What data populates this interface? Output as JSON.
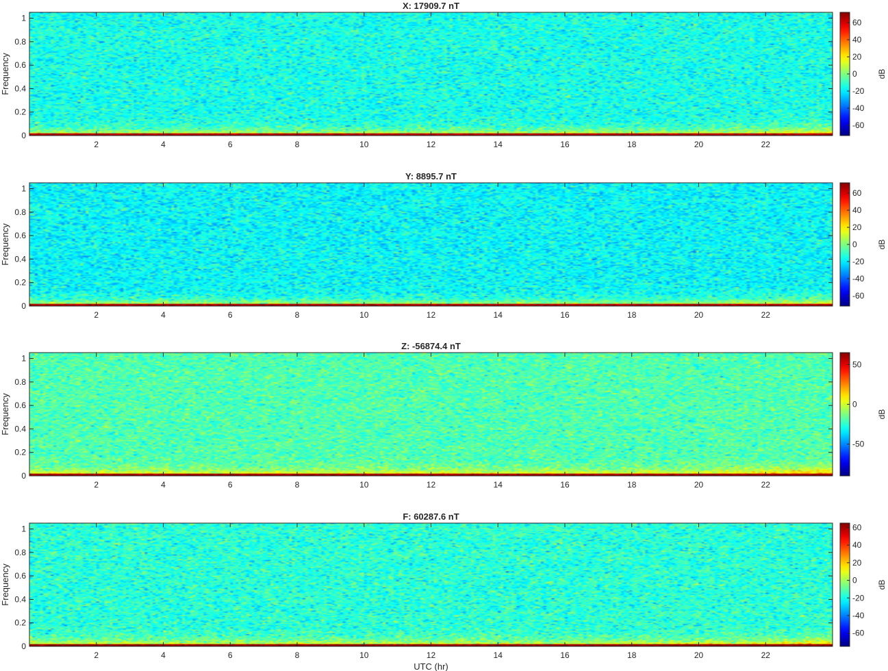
{
  "figure": {
    "xlabel": "UTC (hr)",
    "colormap": "jet",
    "jet_colors": [
      "#00008f",
      "#0000ff",
      "#00ffff",
      "#ffff00",
      "#ff0000",
      "#800000"
    ]
  },
  "chart_data": [
    {
      "type": "heatmap",
      "title": "X: 17909.7 nT",
      "ylabel": "Frequency",
      "xlabel": "",
      "colorbar_label": "dB",
      "xlim": [
        0,
        24
      ],
      "ylim": [
        0,
        1.05
      ],
      "xticks": [
        2,
        4,
        6,
        8,
        10,
        12,
        14,
        16,
        18,
        20,
        22
      ],
      "yticks": [
        0,
        0.2,
        0.4,
        0.6,
        0.8,
        1
      ],
      "clim": [
        -72,
        72
      ],
      "cbar_ticks": [
        -60,
        -40,
        -20,
        0,
        20,
        40,
        60
      ],
      "background_db": -15,
      "low_freq_band_db": 30,
      "dc_line_db": 65,
      "late_rise_db": 18
    },
    {
      "type": "heatmap",
      "title": "Y: 8895.7 nT",
      "ylabel": "Frequency",
      "xlabel": "",
      "colorbar_label": "dB",
      "xlim": [
        0,
        24
      ],
      "ylim": [
        0,
        1.05
      ],
      "xticks": [
        2,
        4,
        6,
        8,
        10,
        12,
        14,
        16,
        18,
        20,
        22
      ],
      "yticks": [
        0,
        0.2,
        0.4,
        0.6,
        0.8,
        1
      ],
      "clim": [
        -72,
        72
      ],
      "cbar_ticks": [
        -60,
        -40,
        -20,
        0,
        20,
        40,
        60
      ],
      "background_db": -18,
      "low_freq_band_db": 26,
      "dc_line_db": 65,
      "late_rise_db": 14
    },
    {
      "type": "heatmap",
      "title": "Z: -56874.4 nT",
      "ylabel": "Frequency",
      "xlabel": "",
      "colorbar_label": "dB",
      "xlim": [
        0,
        24
      ],
      "ylim": [
        0,
        1.05
      ],
      "xticks": [
        2,
        4,
        6,
        8,
        10,
        12,
        14,
        16,
        18,
        20,
        22
      ],
      "yticks": [
        0,
        0.2,
        0.4,
        0.6,
        0.8,
        1
      ],
      "clim": [
        -90,
        65
      ],
      "cbar_ticks": [
        -50,
        0,
        50
      ],
      "background_db": -20,
      "low_freq_band_db": 25,
      "dc_line_db": 60,
      "late_rise_db": 22
    },
    {
      "type": "heatmap",
      "title": "F: 60287.6 nT",
      "ylabel": "Frequency",
      "xlabel": "UTC (hr)",
      "colorbar_label": "dB",
      "xlim": [
        0,
        24
      ],
      "ylim": [
        0,
        1.05
      ],
      "xticks": [
        2,
        4,
        6,
        8,
        10,
        12,
        14,
        16,
        18,
        20,
        22
      ],
      "yticks": [
        0,
        0.2,
        0.4,
        0.6,
        0.8,
        1
      ],
      "clim": [
        -75,
        65
      ],
      "cbar_ticks": [
        -60,
        -40,
        -20,
        0,
        20,
        40,
        60
      ],
      "background_db": -17,
      "low_freq_band_db": 28,
      "dc_line_db": 62,
      "late_rise_db": 16
    }
  ]
}
